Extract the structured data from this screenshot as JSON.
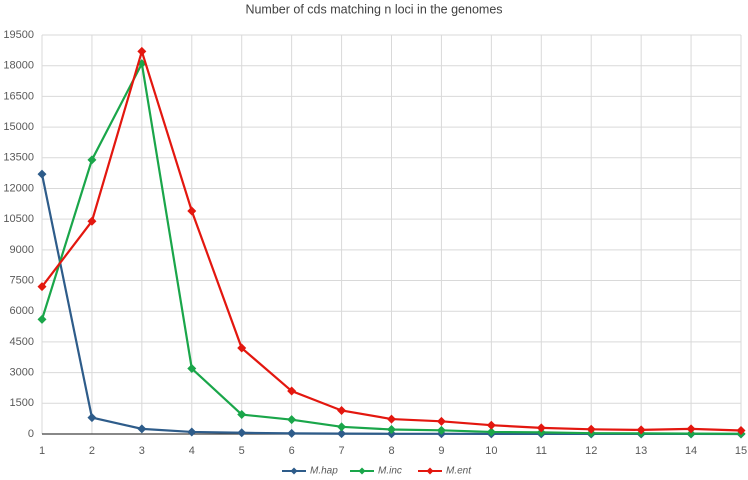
{
  "chart_data": {
    "type": "line",
    "title": "Number of cds matching n loci in the genomes",
    "x": [
      1,
      2,
      3,
      4,
      5,
      6,
      7,
      8,
      9,
      10,
      11,
      12,
      13,
      14,
      15
    ],
    "xlim": [
      1,
      15
    ],
    "xticks": [
      1,
      2,
      3,
      4,
      5,
      6,
      7,
      8,
      9,
      10,
      11,
      12,
      13,
      14,
      15
    ],
    "ylim": [
      0,
      19500
    ],
    "yticks": [
      0,
      1500,
      3000,
      4500,
      6000,
      7500,
      9000,
      10500,
      12000,
      13500,
      15000,
      16500,
      18000,
      19500
    ],
    "grid": true,
    "legend": "bottom",
    "series": [
      {
        "name": "M.hap",
        "color": "#2e5c8a",
        "values": [
          12700,
          800,
          250,
          100,
          60,
          30,
          20,
          10,
          10,
          5,
          5,
          3,
          2,
          2,
          1
        ]
      },
      {
        "name": "M.inc",
        "color": "#1aa64a",
        "values": [
          5600,
          13400,
          18100,
          3200,
          950,
          700,
          350,
          220,
          180,
          100,
          80,
          40,
          30,
          20,
          10
        ]
      },
      {
        "name": "M.ent",
        "color": "#e3170f",
        "values": [
          7200,
          10400,
          18700,
          10900,
          4200,
          2100,
          1150,
          730,
          620,
          430,
          300,
          230,
          200,
          250,
          170
        ]
      }
    ]
  }
}
